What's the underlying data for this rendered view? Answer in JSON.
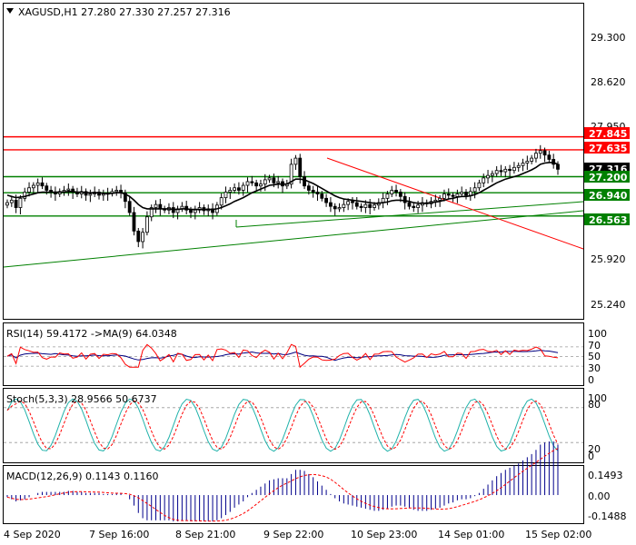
{
  "chart_data": [
    {
      "type": "candlestick",
      "title": "XAGUSD,H1  27.280 27.330 27.257 27.316",
      "price_ticks": [
        "29.300",
        "28.620",
        "27.950",
        "25.920",
        "25.240"
      ],
      "ylim": [
        24.9,
        30.0
      ],
      "x_labels": [
        "4 Sep 2020",
        "7 Sep 16:00",
        "8 Sep 21:00",
        "9 Sep 22:00",
        "10 Sep 23:00",
        "14 Sep 01:00",
        "15 Sep 02:00"
      ],
      "levels": [
        {
          "value": "27.845",
          "price": 27.845,
          "color": "#ff0000"
        },
        {
          "value": "27.635",
          "price": 27.635,
          "color": "#ff0000"
        },
        {
          "value": "27.316",
          "price": 27.316,
          "color": "#000000"
        },
        {
          "value": "27.200",
          "price": 27.2,
          "color": "#008000"
        },
        {
          "value": "26.940",
          "price": 26.94,
          "color": "#008000"
        },
        {
          "value": "26.563",
          "price": 26.563,
          "color": "#008000"
        }
      ],
      "close_series": [
        26.78,
        26.82,
        26.7,
        26.85,
        26.95,
        27.02,
        27.06,
        27.1,
        27.05,
        26.98,
        26.95,
        26.92,
        26.96,
        26.98,
        27.0,
        26.95,
        26.92,
        26.96,
        26.9,
        26.92,
        26.95,
        26.9,
        26.92,
        26.93,
        26.96,
        26.98,
        26.94,
        26.8,
        26.62,
        26.32,
        26.15,
        26.3,
        26.55,
        26.7,
        26.75,
        26.68,
        26.66,
        26.7,
        26.62,
        26.68,
        26.72,
        26.66,
        26.62,
        26.66,
        26.7,
        26.65,
        26.68,
        26.62,
        26.74,
        26.86,
        26.95,
        26.98,
        27.02,
        26.98,
        27.06,
        27.12,
        27.1,
        27.05,
        27.08,
        27.15,
        27.18,
        27.1,
        27.12,
        27.05,
        27.08,
        27.4,
        27.5,
        27.2,
        27.05,
        26.98,
        26.95,
        26.92,
        26.85,
        26.78,
        26.72,
        26.68,
        26.7,
        26.75,
        26.8,
        26.78,
        26.72,
        26.7,
        26.75,
        26.7,
        26.74,
        26.78,
        26.85,
        26.92,
        26.98,
        26.95,
        26.88,
        26.78,
        26.72,
        26.7,
        26.74,
        26.78,
        26.76,
        26.8,
        26.82,
        26.85,
        26.92,
        26.9,
        26.88,
        26.92,
        26.95,
        26.9,
        26.96,
        27.02,
        27.1,
        27.18,
        27.22,
        27.25,
        27.3,
        27.28,
        27.32,
        27.3,
        27.35,
        27.38,
        27.42,
        27.45,
        27.5,
        27.58,
        27.62,
        27.55,
        27.48,
        27.4,
        27.32
      ],
      "ma_series": [
        26.9,
        26.88,
        26.86,
        26.87,
        26.88,
        26.9,
        26.92,
        26.94,
        26.95,
        26.95,
        26.95,
        26.95,
        26.95,
        26.95,
        26.96,
        26.96,
        26.95,
        26.95,
        26.94,
        26.94,
        26.94,
        26.94,
        26.93,
        26.93,
        26.93,
        26.94,
        26.94,
        26.92,
        26.88,
        26.82,
        26.75,
        26.7,
        26.68,
        26.68,
        26.68,
        26.68,
        26.68,
        26.68,
        26.67,
        26.67,
        26.68,
        26.68,
        26.67,
        26.67,
        26.67,
        26.67,
        26.67,
        26.67,
        26.68,
        26.7,
        26.73,
        26.76,
        26.8,
        26.83,
        26.86,
        26.9,
        26.94,
        26.97,
        27.0,
        27.03,
        27.06,
        27.07,
        27.08,
        27.08,
        27.08,
        27.12,
        27.16,
        27.16,
        27.15,
        27.12,
        27.09,
        27.05,
        27.01,
        26.97,
        26.93,
        26.89,
        26.86,
        26.84,
        26.83,
        26.82,
        26.81,
        26.8,
        26.79,
        26.78,
        26.77,
        26.77,
        26.78,
        26.79,
        26.81,
        26.82,
        26.82,
        26.81,
        26.8,
        26.78,
        26.77,
        26.77,
        26.77,
        26.78,
        26.79,
        26.8,
        26.82,
        26.84,
        26.85,
        26.87,
        26.88,
        26.88,
        26.89,
        26.91,
        26.94,
        26.98,
        27.02,
        27.06,
        27.1,
        27.13,
        27.16,
        27.18,
        27.2,
        27.22,
        27.25,
        27.28,
        27.31,
        27.35,
        27.4,
        27.42,
        27.43,
        27.43,
        27.4
      ]
    },
    {
      "type": "line",
      "title": "RSI(14) 59.4172 ->MA(9) 64.0348",
      "ticks": [
        "100",
        "70",
        "50",
        "30",
        "0"
      ],
      "ylim": [
        0,
        100
      ],
      "levels": [
        70,
        50,
        30
      ]
    },
    {
      "type": "line",
      "title": "Stoch(5,3,3) 28.9566 50.6737",
      "ticks": [
        "100",
        "80",
        "20",
        "0"
      ],
      "ylim": [
        0,
        100
      ],
      "levels": [
        80,
        20
      ]
    },
    {
      "type": "bar",
      "title": "MACD(12,26,9) 0.1143 0.1160",
      "ticks": [
        "0.1493",
        "0.00",
        "-0.1488"
      ],
      "ylim": [
        -0.1488,
        0.1493
      ]
    }
  ],
  "colors": {
    "support": "#008000",
    "resistance": "#ff0000",
    "trendline_up": "#008000",
    "trendline_down": "#ff0000",
    "ma": "#000000",
    "rsi": "#ff0000",
    "rsi_ma": "#000080",
    "stoch_main": "#20b2aa",
    "stoch_signal": "#ff0000",
    "macd_bars": "#00008b",
    "macd_signal": "#ff0000"
  }
}
